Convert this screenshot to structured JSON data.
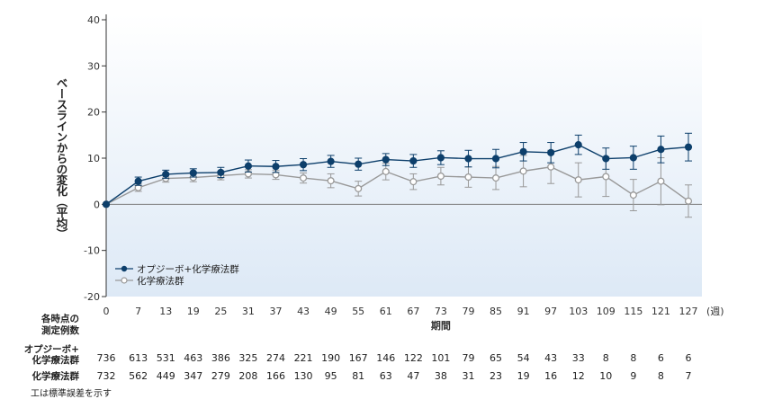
{
  "chart_data": {
    "type": "line",
    "ylabel": "ベースラインからの変化（平均）",
    "xlabel": "期間",
    "x_unit": "(週)",
    "x": [
      0,
      7,
      13,
      19,
      25,
      31,
      37,
      43,
      49,
      55,
      61,
      67,
      73,
      79,
      85,
      91,
      97,
      103,
      109,
      115,
      121,
      127
    ],
    "ylim": [
      -20,
      40
    ],
    "yticks": [
      -20,
      -10,
      0,
      10,
      20,
      30,
      40
    ],
    "series": [
      {
        "name": "オプジーボ+化学療法群",
        "color": "#0d3f6b",
        "marker": "filled-circle",
        "values": [
          0,
          5,
          6.5,
          6.8,
          6.9,
          8.3,
          8.2,
          8.6,
          9.3,
          8.7,
          9.7,
          9.4,
          10.1,
          9.9,
          9.9,
          11.4,
          11.2,
          12.9,
          9.9,
          10.1,
          11.9,
          12.4
        ],
        "error": [
          0.4,
          0.9,
          0.9,
          0.9,
          1.1,
          1.3,
          1.3,
          1.3,
          1.3,
          1.3,
          1.3,
          1.4,
          1.5,
          1.8,
          2.0,
          2.0,
          2.2,
          2.1,
          2.3,
          2.5,
          2.9,
          3.0
        ]
      },
      {
        "name": "化学療法群",
        "color": "#999999",
        "marker": "open-circle",
        "values": [
          0,
          3.6,
          5.6,
          5.8,
          6.2,
          6.6,
          6.4,
          5.7,
          5.1,
          3.4,
          7.1,
          4.9,
          6.1,
          5.9,
          5.7,
          7.2,
          8.1,
          5.3,
          6.0,
          2.0,
          5.0,
          0.7
        ],
        "error": [
          0.3,
          0.8,
          0.8,
          0.9,
          0.9,
          0.9,
          1.0,
          1.1,
          1.5,
          1.6,
          1.8,
          1.7,
          1.9,
          2.2,
          2.5,
          3.4,
          3.6,
          3.7,
          4.3,
          3.4,
          5.1,
          3.5
        ]
      }
    ],
    "legend": "bottom-left",
    "grid": false,
    "counts_header": [
      "各時点の",
      "測定例数"
    ],
    "counts_rows": [
      {
        "label": [
          "オプジーボ+",
          "化学療法群"
        ],
        "values": [
          736,
          613,
          531,
          463,
          386,
          325,
          274,
          221,
          190,
          167,
          146,
          122,
          101,
          79,
          65,
          54,
          43,
          33,
          8,
          8,
          6,
          6
        ]
      },
      {
        "label": [
          "化学療法群"
        ],
        "values": [
          732,
          562,
          449,
          347,
          279,
          208,
          166,
          130,
          95,
          81,
          63,
          47,
          38,
          31,
          23,
          19,
          16,
          12,
          10,
          9,
          8,
          7
        ]
      }
    ],
    "footnote": "工は標準誤差を示す"
  }
}
